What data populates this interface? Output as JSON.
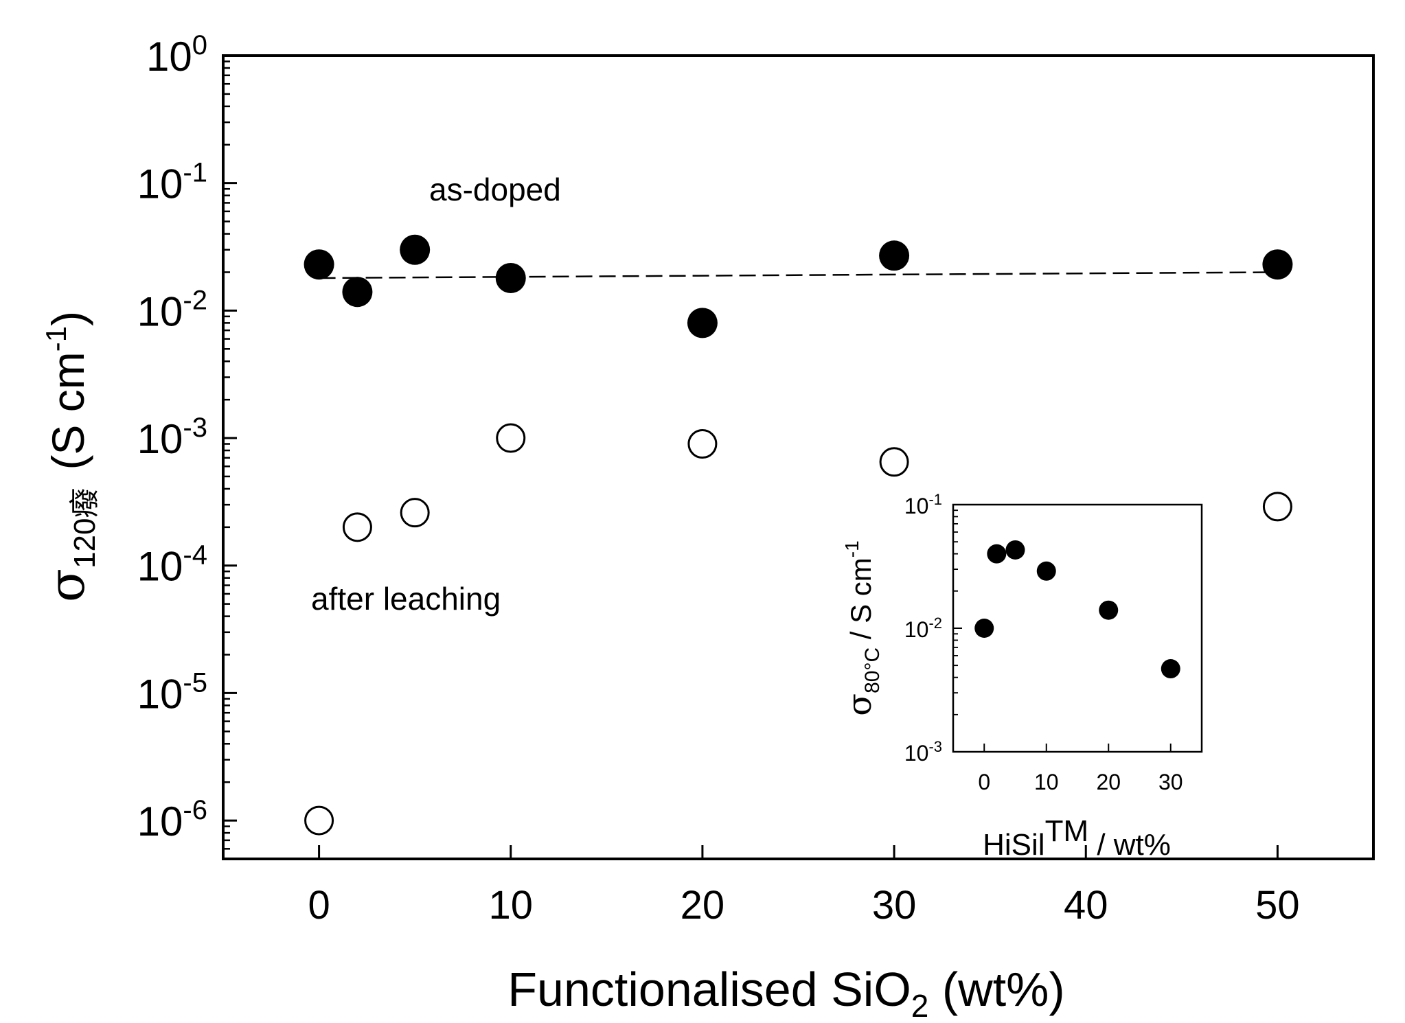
{
  "chart_data": [
    {
      "type": "scatter",
      "y_scale": "log",
      "xlabel": "Functionalised SiO",
      "xlabel_subscript": "2",
      "xlabel_suffix": " (wt%)",
      "ylabel_symbol": "σ",
      "ylabel_subscript": "120癈",
      "ylabel_units": "(S cm",
      "ylabel_units_exp": "-1",
      "ylabel_units_close": ")",
      "xlim": [
        -5,
        55
      ],
      "ylim": [
        5e-07,
        1
      ],
      "x_ticks": [
        0,
        10,
        20,
        30,
        40,
        50
      ],
      "x_tick_labels": [
        "0",
        "10",
        "20",
        "30",
        "40",
        "50"
      ],
      "y_ticks": [
        {
          "value": 1,
          "base": "10",
          "exp": "0"
        },
        {
          "value": 0.1,
          "base": "10",
          "exp": "-1"
        },
        {
          "value": 0.01,
          "base": "10",
          "exp": "-2"
        },
        {
          "value": 0.001,
          "base": "10",
          "exp": "-3"
        },
        {
          "value": 0.0001,
          "base": "10",
          "exp": "-4"
        },
        {
          "value": 1e-05,
          "base": "10",
          "exp": "-5"
        },
        {
          "value": 1e-06,
          "base": "10",
          "exp": "-6"
        }
      ],
      "series": [
        {
          "name": "as-doped",
          "marker": "filled-circle",
          "x": [
            0,
            2,
            5,
            10,
            20,
            30,
            50
          ],
          "y": [
            0.023,
            0.014,
            0.03,
            0.018,
            0.008,
            0.027,
            0.023
          ]
        },
        {
          "name": "after leaching",
          "marker": "open-circle",
          "x": [
            0,
            2,
            5,
            10,
            20,
            30,
            50
          ],
          "y": [
            1e-06,
            0.0002,
            0.00026,
            0.001,
            0.0009,
            0.00065,
            0.00029
          ]
        }
      ],
      "fit_line": {
        "style": "dashed",
        "x": [
          0,
          50
        ],
        "y": [
          0.018,
          0.02
        ]
      },
      "annotations": [
        "as-doped",
        "after leaching"
      ]
    },
    {
      "type": "scatter",
      "inset": true,
      "y_scale": "log",
      "xlabel": "HiSil",
      "xlabel_superscript": "TM",
      "xlabel_suffix": " / wt%",
      "ylabel_symbol": "σ",
      "ylabel_subscript": "80°C",
      "ylabel_units": " / S cm",
      "ylabel_units_exp": "-1",
      "xlim": [
        -5,
        35
      ],
      "ylim": [
        0.001,
        0.1
      ],
      "x_ticks": [
        0,
        10,
        20,
        30
      ],
      "x_tick_labels": [
        "0",
        "10",
        "20",
        "30"
      ],
      "y_ticks": [
        {
          "value": 0.1,
          "base": "10",
          "exp": "-1"
        },
        {
          "value": 0.01,
          "base": "10",
          "exp": "-2"
        },
        {
          "value": 0.001,
          "base": "10",
          "exp": "-3"
        }
      ],
      "series": [
        {
          "name": "HiSil",
          "marker": "filled-circle",
          "x": [
            0,
            2,
            5,
            10,
            20,
            30
          ],
          "y": [
            0.01,
            0.04,
            0.043,
            0.029,
            0.014,
            0.0047
          ]
        }
      ]
    }
  ]
}
